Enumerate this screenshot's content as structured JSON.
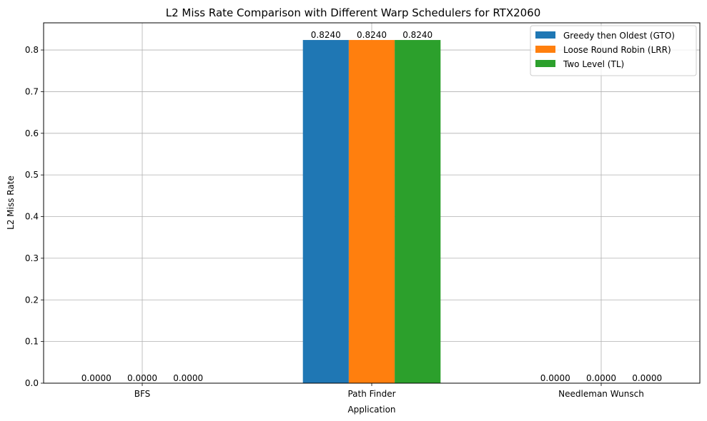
{
  "chart_data": {
    "type": "bar",
    "title": "L2 Miss Rate Comparison with Different Warp Schedulers for RTX2060",
    "xlabel": "Application",
    "ylabel": "L2 Miss Rate",
    "categories": [
      "BFS",
      "Path Finder",
      "Needleman Wunsch"
    ],
    "series": [
      {
        "name": "Greedy then Oldest (GTO)",
        "color": "#1f77b4",
        "values": [
          0.0,
          0.824,
          0.0
        ],
        "labels": [
          "0.0000",
          "0.8240",
          "0.0000"
        ]
      },
      {
        "name": "Loose Round Robin (LRR)",
        "color": "#ff7f0e",
        "values": [
          0.0,
          0.824,
          0.0
        ],
        "labels": [
          "0.0000",
          "0.8240",
          "0.0000"
        ]
      },
      {
        "name": "Two Level (TL)",
        "color": "#2ca02c",
        "values": [
          0.0,
          0.824,
          0.0
        ],
        "labels": [
          "0.0000",
          "0.8240",
          "0.0000"
        ]
      }
    ],
    "ylim": [
      0,
      0.8652
    ],
    "yticks": [
      0.0,
      0.1,
      0.2,
      0.3,
      0.4,
      0.5,
      0.6,
      0.7,
      0.8
    ],
    "ytick_labels": [
      "0.0",
      "0.1",
      "0.2",
      "0.3",
      "0.4",
      "0.5",
      "0.6",
      "0.7",
      "0.8"
    ],
    "grid": true,
    "legend_position": "top-right"
  }
}
